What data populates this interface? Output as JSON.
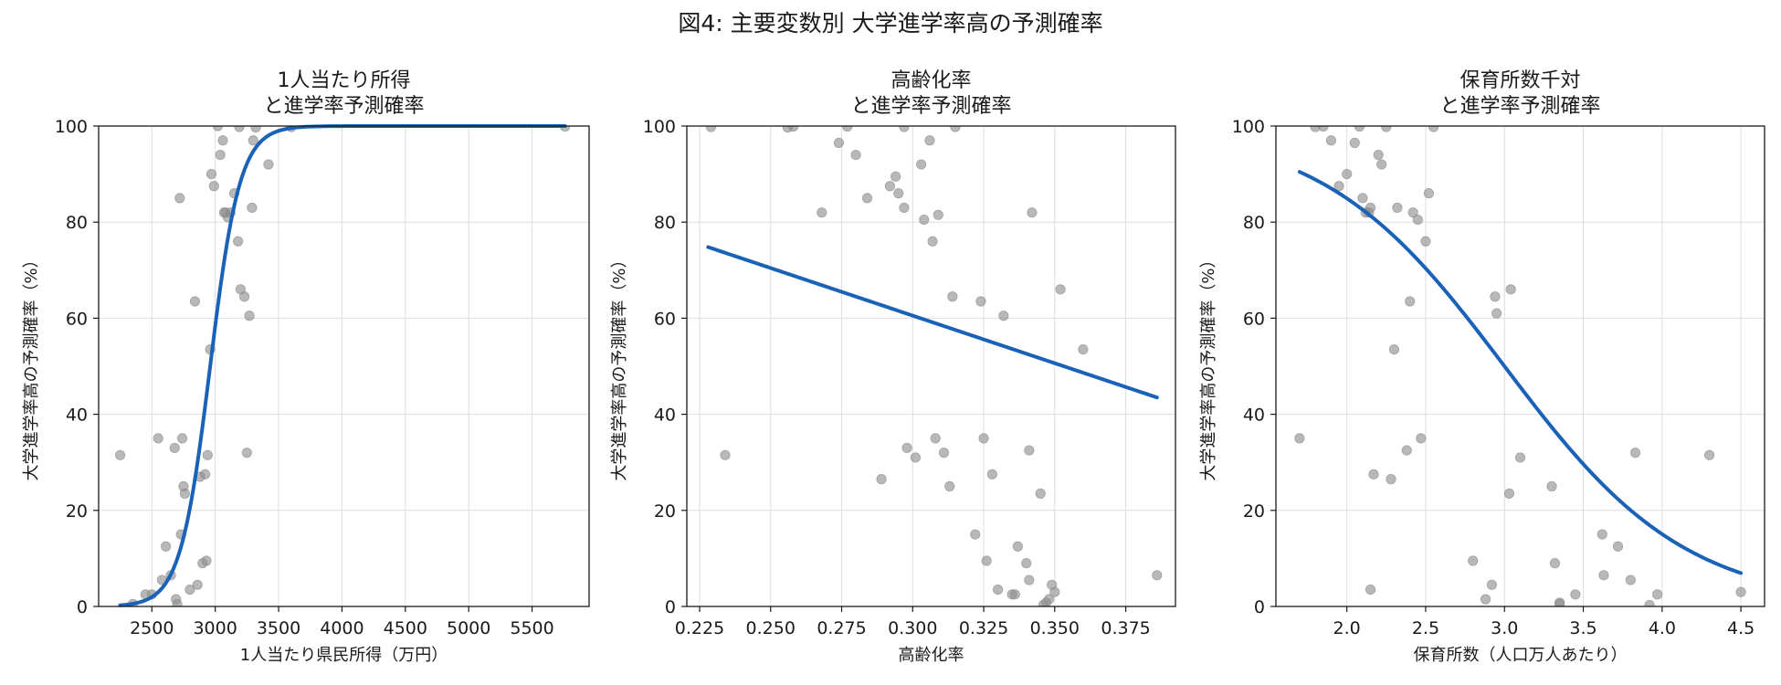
{
  "figure": {
    "suptitle": "図4: 主要変数別 大学進学率高の予測確率"
  },
  "chart_data": [
    {
      "type": "scatter",
      "title_lines": [
        "1人当たり所得",
        "と進学率予測確率"
      ],
      "xlabel": "1人当たり県民所得（万円）",
      "ylabel": "大学進学率高の予測確率（%）",
      "xlim": [
        2080,
        5950
      ],
      "ylim": [
        0,
        100
      ],
      "xticks": [
        2500,
        3000,
        3500,
        4000,
        4500,
        5000,
        5500
      ],
      "yticks": [
        0,
        20,
        40,
        60,
        80,
        100
      ],
      "grid": true,
      "curve": {
        "model": "logistic",
        "midpoint": 2960,
        "slope": 0.0085,
        "x_range": [
          2250,
          5760
        ]
      },
      "points": {
        "x": [
          2250,
          2350,
          2450,
          2500,
          2550,
          2580,
          2610,
          2650,
          2680,
          2690,
          2700,
          2720,
          2730,
          2740,
          2750,
          2760,
          2800,
          2840,
          2860,
          2880,
          2900,
          2920,
          2930,
          2940,
          2960,
          2970,
          2990,
          3020,
          3040,
          3060,
          3070,
          3080,
          3100,
          3120,
          3150,
          3180,
          3190,
          3200,
          3230,
          3250,
          3270,
          3290,
          3300,
          3320,
          3420,
          3600,
          5760
        ],
        "y": [
          31.5,
          0.5,
          2.5,
          2.5,
          35,
          5.5,
          12.5,
          6.5,
          33,
          1.5,
          0.5,
          85,
          15,
          35,
          25,
          23.5,
          3.5,
          63.5,
          4.5,
          27,
          9,
          27.5,
          9.5,
          31.5,
          53.5,
          90,
          87.5,
          100,
          94,
          97,
          82,
          82,
          81,
          82,
          86,
          76,
          99.8,
          66,
          64.5,
          32,
          60.5,
          83,
          97,
          99.7,
          92,
          99.8,
          99.9
        ]
      }
    },
    {
      "type": "scatter",
      "title_lines": [
        "高齢化率",
        "と進学率予測確率"
      ],
      "xlabel": "高齢化率",
      "ylabel": "大学進学率高の予測確率（%）",
      "xlim": [
        0.2205,
        0.3925
      ],
      "ylim": [
        0,
        100
      ],
      "xticks": [
        "0.225",
        "0.250",
        "0.275",
        "0.300",
        "0.325",
        "0.350",
        "0.375"
      ],
      "yticks": [
        0,
        20,
        40,
        60,
        80,
        100
      ],
      "grid": true,
      "curve": {
        "model": "linear",
        "x_range": [
          0.228,
          0.386
        ],
        "y_range": [
          74.8,
          43.5
        ]
      },
      "points": {
        "x": [
          0.229,
          0.234,
          0.256,
          0.258,
          0.268,
          0.274,
          0.277,
          0.28,
          0.284,
          0.289,
          0.292,
          0.294,
          0.295,
          0.297,
          0.297,
          0.298,
          0.301,
          0.303,
          0.304,
          0.306,
          0.307,
          0.308,
          0.309,
          0.311,
          0.313,
          0.314,
          0.315,
          0.322,
          0.324,
          0.325,
          0.326,
          0.328,
          0.33,
          0.332,
          0.335,
          0.336,
          0.337,
          0.34,
          0.341,
          0.341,
          0.342,
          0.345,
          0.346,
          0.347,
          0.348,
          0.349,
          0.35,
          0.352,
          0.36,
          0.386
        ],
        "y": [
          99.8,
          31.5,
          99.7,
          99.9,
          82,
          96.5,
          99.9,
          94,
          85,
          26.5,
          87.5,
          89.5,
          86,
          83,
          99.8,
          33,
          31,
          92,
          80.5,
          97,
          76,
          35,
          81.5,
          32,
          25,
          64.5,
          99.8,
          15,
          63.5,
          35,
          9.5,
          27.5,
          3.5,
          60.5,
          2.5,
          2.5,
          12.5,
          9,
          32.5,
          5.5,
          82,
          23.5,
          0.3,
          0.8,
          1.5,
          4.5,
          3,
          66,
          53.5,
          6.5
        ]
      }
    },
    {
      "type": "scatter",
      "title_lines": [
        "保育所数千対",
        "と進学率予測確率"
      ],
      "xlabel": "保育所数（人口万人あたり）",
      "ylabel": "大学進学率高の予測確率（%）",
      "xlim": [
        1.55,
        4.65
      ],
      "ylim": [
        0,
        100
      ],
      "xticks": [
        "2.0",
        "2.5",
        "3.0",
        "3.5",
        "4.0",
        "4.5"
      ],
      "yticks": [
        0,
        20,
        40,
        60,
        80,
        100
      ],
      "grid": true,
      "curve": {
        "model": "logistic",
        "midpoint": 3.0,
        "slope": -1.73,
        "x_range": [
          1.7,
          4.5
        ]
      },
      "points": {
        "x": [
          1.7,
          1.8,
          1.85,
          1.9,
          1.95,
          2.0,
          2.05,
          2.08,
          2.1,
          2.12,
          2.14,
          2.15,
          2.15,
          2.17,
          2.2,
          2.22,
          2.25,
          2.28,
          2.3,
          2.32,
          2.38,
          2.4,
          2.42,
          2.45,
          2.47,
          2.5,
          2.52,
          2.55,
          2.8,
          2.88,
          2.92,
          2.94,
          2.95,
          3.03,
          3.04,
          3.1,
          3.3,
          3.32,
          3.35,
          3.35,
          3.45,
          3.62,
          3.63,
          3.72,
          3.8,
          3.83,
          3.92,
          3.97,
          4.3,
          4.5
        ],
        "y": [
          35,
          99.8,
          99.9,
          97,
          87.5,
          90,
          96.5,
          99.9,
          85,
          82,
          82,
          83,
          3.5,
          27.5,
          94,
          92,
          99.8,
          26.5,
          53.5,
          83,
          32.5,
          63.5,
          82,
          80.5,
          35,
          76,
          86,
          99.8,
          9.5,
          1.5,
          4.5,
          64.5,
          61,
          23.5,
          66,
          31,
          25,
          9,
          0.5,
          0.8,
          2.5,
          15,
          6.5,
          12.5,
          5.5,
          32,
          0.3,
          2.5,
          31.5,
          3
        ]
      }
    }
  ],
  "colors": {
    "curve": "#1a62b8",
    "point": "#8c8c8c",
    "grid": "#dedede",
    "axis": "#1a1a1a"
  }
}
